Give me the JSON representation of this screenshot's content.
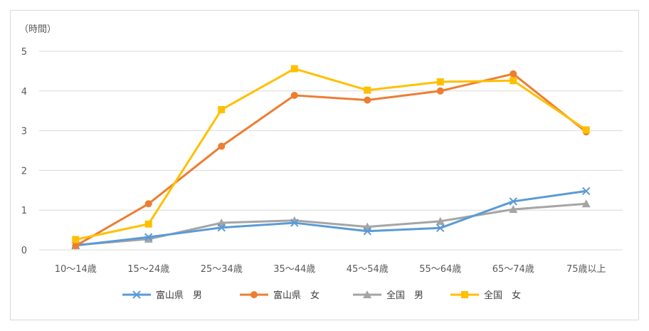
{
  "chart_data": {
    "type": "line",
    "unit_label": "（時間）",
    "categories": [
      "10〜14歳",
      "15〜24歳",
      "25〜34歳",
      "35〜44歳",
      "45〜54歳",
      "55〜64歳",
      "65〜74歳",
      "75歳以上"
    ],
    "ylim": [
      0,
      5
    ],
    "yticks": [
      0,
      1,
      2,
      3,
      4,
      5
    ],
    "grid": true,
    "legend_position": "bottom",
    "series": [
      {
        "name": "富山県　男",
        "color": "#5B9BD5",
        "marker": "x",
        "values": [
          0.11,
          0.32,
          0.56,
          0.68,
          0.47,
          0.55,
          1.22,
          1.48
        ]
      },
      {
        "name": "富山県　女",
        "color": "#ED7D31",
        "marker": "circle",
        "values": [
          0.1,
          1.16,
          2.61,
          3.89,
          3.77,
          4.0,
          4.43,
          2.97
        ]
      },
      {
        "name": "全国　男",
        "color": "#A5A5A5",
        "marker": "triangle",
        "values": [
          0.12,
          0.27,
          0.68,
          0.74,
          0.58,
          0.72,
          1.02,
          1.16
        ]
      },
      {
        "name": "全国　女",
        "color": "#FFC000",
        "marker": "square",
        "values": [
          0.26,
          0.65,
          3.53,
          4.56,
          4.02,
          4.23,
          4.26,
          3.02
        ]
      }
    ]
  }
}
